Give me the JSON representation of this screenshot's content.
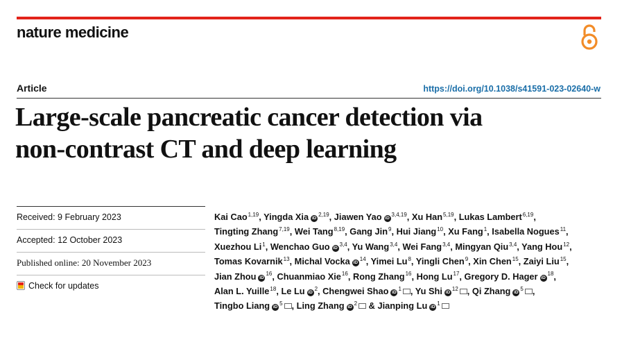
{
  "journal": {
    "name": "nature medicine"
  },
  "article": {
    "type": "Article",
    "doi": "https://doi.org/10.1038/s41591-023-02640-w",
    "title_line1": "Large-scale pancreatic cancer detection via",
    "title_line2": "non-contrast CT and deep learning"
  },
  "dates": {
    "received": "Received: 9 February 2023",
    "accepted": "Accepted: 12 October 2023",
    "published": "Published online: 20 November 2023",
    "check_updates": "Check for updates"
  },
  "colors": {
    "accent": "#e2231a",
    "link": "#1a6ea8",
    "open_access": "#f28c28"
  },
  "icons": {
    "open_access": "open-access-icon",
    "orcid": "orcid-icon",
    "email": "email-icon",
    "check_updates": "check-for-updates-icon"
  },
  "authors": [
    {
      "name": "Kai Cao",
      "aff": "1,19"
    },
    {
      "name": "Yingda Xia",
      "aff": "2,19",
      "orcid": true
    },
    {
      "name": "Jiawen Yao",
      "aff": "3,4,19",
      "orcid": true
    },
    {
      "name": "Xu Han",
      "aff": "5,19"
    },
    {
      "name": "Lukas Lambert",
      "aff": "6,19"
    },
    {
      "name": "Tingting Zhang",
      "aff": "7,19"
    },
    {
      "name": "Wei Tang",
      "aff": "8,19"
    },
    {
      "name": "Gang Jin",
      "aff": "9"
    },
    {
      "name": "Hui Jiang",
      "aff": "10"
    },
    {
      "name": "Xu Fang",
      "aff": "1"
    },
    {
      "name": "Isabella Nogues",
      "aff": "11"
    },
    {
      "name": "Xuezhou Li",
      "aff": "1"
    },
    {
      "name": "Wenchao Guo",
      "aff": "3,4",
      "orcid": true
    },
    {
      "name": "Yu Wang",
      "aff": "3,4"
    },
    {
      "name": "Wei Fang",
      "aff": "3,4"
    },
    {
      "name": "Mingyan Qiu",
      "aff": "3,4"
    },
    {
      "name": "Yang Hou",
      "aff": "12"
    },
    {
      "name": "Tomas Kovarnik",
      "aff": "13"
    },
    {
      "name": "Michal Vocka",
      "aff": "14",
      "orcid": true
    },
    {
      "name": "Yimei Lu",
      "aff": "8"
    },
    {
      "name": "Yingli Chen",
      "aff": "9"
    },
    {
      "name": "Xin Chen",
      "aff": "15"
    },
    {
      "name": "Zaiyi Liu",
      "aff": "15"
    },
    {
      "name": "Jian Zhou",
      "aff": "16",
      "orcid": true
    },
    {
      "name": "Chuanmiao Xie",
      "aff": "16"
    },
    {
      "name": "Rong Zhang",
      "aff": "16"
    },
    {
      "name": "Hong Lu",
      "aff": "17"
    },
    {
      "name": "Gregory D. Hager",
      "aff": "18",
      "orcid": true
    },
    {
      "name": "Alan L. Yuille",
      "aff": "18"
    },
    {
      "name": "Le Lu",
      "aff": "2",
      "orcid": true
    },
    {
      "name": "Chengwei Shao",
      "aff": "1",
      "orcid": true,
      "email": true
    },
    {
      "name": "Yu Shi",
      "aff": "12",
      "orcid": true,
      "email": true
    },
    {
      "name": "Qi Zhang",
      "aff": "5",
      "orcid": true,
      "email": true
    },
    {
      "name": "Tingbo Liang",
      "aff": "5",
      "orcid": true,
      "email": true
    },
    {
      "name": "Ling Zhang",
      "aff": "2",
      "orcid": true,
      "email": true
    },
    {
      "name": "Jianping Lu",
      "aff": "1",
      "orcid": true,
      "email": true,
      "prefix": "& "
    }
  ]
}
